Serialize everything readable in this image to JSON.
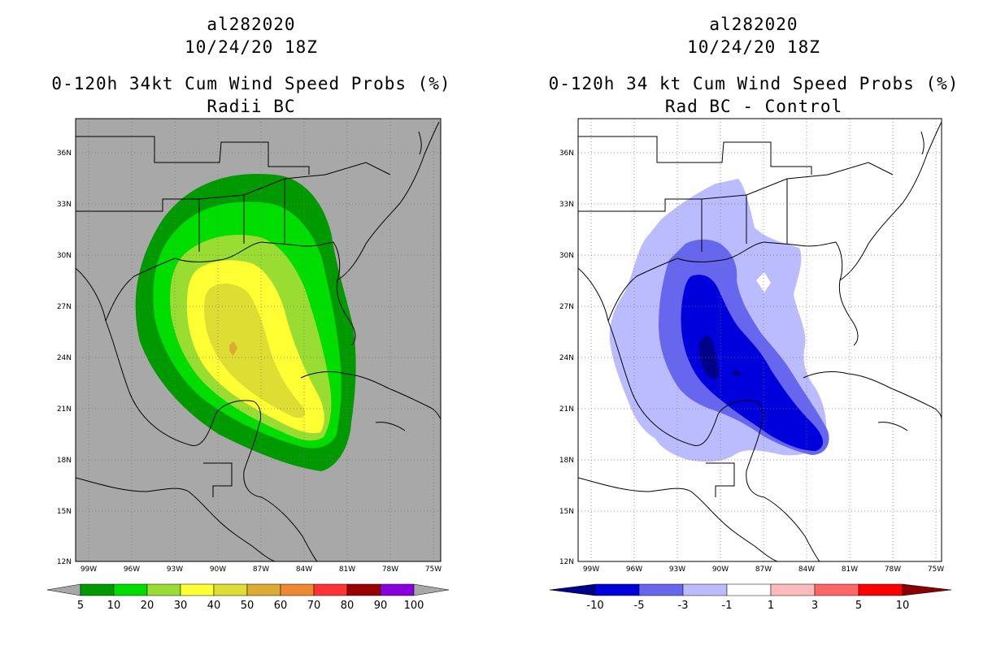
{
  "panels": [
    {
      "storm_id": "al282020",
      "datetime": "10/24/20 18Z",
      "title": "0-120h 34kt Cum Wind Speed Probs (%)",
      "subtitle": "Radii BC",
      "field_type": "probability",
      "background_color": "#a8a8a8"
    },
    {
      "storm_id": "al282020",
      "datetime": "10/24/20 18Z",
      "title": "0-120h 34 kt Cum Wind Speed Probs (%)",
      "subtitle": "Rad BC - Control",
      "field_type": "difference",
      "background_color": "#ffffff"
    }
  ],
  "axes": {
    "lat_labels": [
      "36N",
      "33N",
      "30N",
      "27N",
      "24N",
      "21N",
      "18N",
      "15N",
      "12N"
    ],
    "lon_labels": [
      "99W",
      "96W",
      "93W",
      "90W",
      "87W",
      "84W",
      "81W",
      "78W",
      "75W"
    ],
    "lat_range": [
      12,
      38
    ],
    "lon_range": [
      -100,
      -75
    ]
  },
  "colorbars": [
    {
      "labels": [
        "5",
        "10",
        "20",
        "30",
        "40",
        "50",
        "60",
        "70",
        "80",
        "90",
        "100"
      ],
      "colors": [
        "#009900",
        "#00dd00",
        "#99dd33",
        "#ffff33",
        "#dddd33",
        "#ddaa33",
        "#ee8833",
        "#ff3333",
        "#990000",
        "#8800dd"
      ],
      "low_arrow_color": "#a8a8a8",
      "high_arrow_color": "#a8a8a8"
    },
    {
      "labels": [
        "-10",
        "-5",
        "-3",
        "-1",
        "1",
        "3",
        "5",
        "10"
      ],
      "colors": [
        "#0000dd",
        "#6666ee",
        "#bbbbff",
        "#ffffff",
        "#ffbbbb",
        "#ff6666",
        "#ff0000"
      ],
      "low_arrow_color": "#000088",
      "high_arrow_color": "#880000"
    }
  ]
}
